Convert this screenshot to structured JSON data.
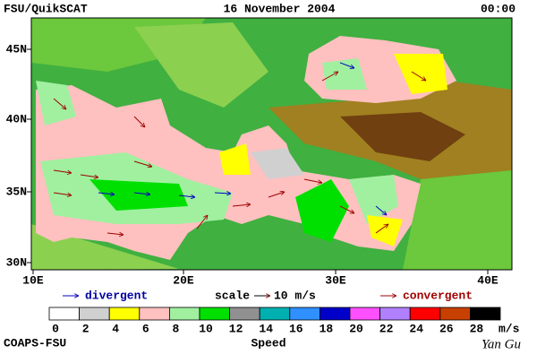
{
  "header": {
    "left": "FSU/QuikSCAT",
    "center": "16 November 2004",
    "right": "00:00"
  },
  "map": {
    "lon_labels": [
      "10E",
      "20E",
      "30E",
      "40E"
    ],
    "lat_labels": [
      "30N",
      "35N",
      "40N",
      "45N"
    ]
  },
  "legend": {
    "divergent": "divergent",
    "scale": "scale",
    "scale_value": "10 m/s",
    "convergent": "convergent"
  },
  "colorbar": {
    "colors": [
      "#ffffff",
      "#d0d0d0",
      "#ffff00",
      "#ffc0c0",
      "#a0f0a0",
      "#00e000",
      "#909090",
      "#00b0b0",
      "#3090ff",
      "#0000c8",
      "#ff50ff",
      "#b080ff",
      "#ff0000",
      "#c84000",
      "#000000"
    ],
    "labels": [
      0,
      2,
      4,
      6,
      8,
      10,
      12,
      14,
      16,
      18,
      20,
      22,
      24,
      26,
      28
    ],
    "unit": "m/s",
    "title": "Speed"
  },
  "footer": {
    "left": "COAPS-FSU",
    "right": "Yan Gu"
  }
}
